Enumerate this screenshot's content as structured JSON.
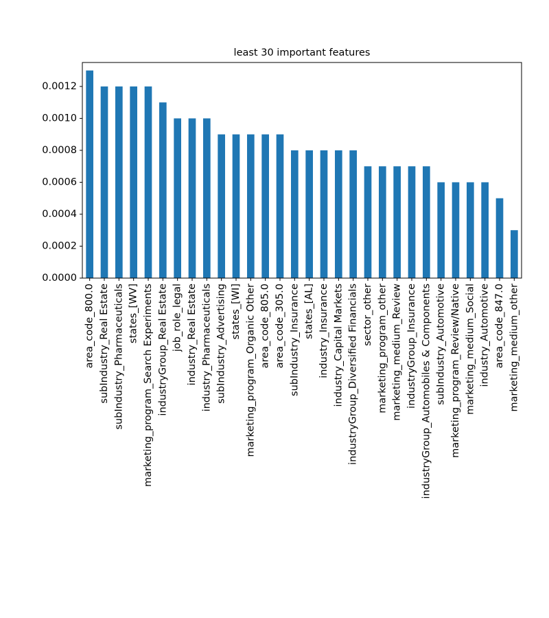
{
  "chart_data": {
    "type": "bar",
    "title": "least 30 important features",
    "xlabel": "",
    "ylabel": "",
    "ylim": [
      0,
      0.00135
    ],
    "yticks": [
      "0.0000",
      "0.0002",
      "0.0004",
      "0.0006",
      "0.0008",
      "0.0010",
      "0.0012"
    ],
    "ytick_values": [
      0,
      0.0002,
      0.0004,
      0.0006,
      0.0008,
      0.001,
      0.0012
    ],
    "grid": false,
    "bar_color": "#1f77b4",
    "categories": [
      "area_code_800.0",
      "subIndustry_Real Estate",
      "subIndustry_Pharmaceuticals",
      "states_[WV]",
      "marketing_program_Search Experiments",
      "industryGroup_Real Estate",
      "job_role_legal",
      "industry_Real Estate",
      "industry_Pharmaceuticals",
      "subIndustry_Advertising",
      "states_[WI]",
      "marketing_program_Organic Other",
      "area_code_805.0",
      "area_code_305.0",
      "subIndustry_Insurance",
      "states_[AL]",
      "industry_Insurance",
      "industry_Capital Markets",
      "industryGroup_Diversified Financials",
      "sector_other",
      "marketing_program_other",
      "marketing_medium_Review",
      "industryGroup_Insurance",
      "industryGroup_Automobiles & Components",
      "subIndustry_Automotive",
      "marketing_program_Review/Native",
      "marketing_medium_Social",
      "industry_Automotive",
      "area_code_847.0",
      "marketing_medium_other"
    ],
    "values": [
      0.0013,
      0.0012,
      0.0012,
      0.0012,
      0.0012,
      0.0011,
      0.001,
      0.001,
      0.001,
      0.0009,
      0.0009,
      0.0009,
      0.0009,
      0.0009,
      0.0008,
      0.0008,
      0.0008,
      0.0008,
      0.0008,
      0.0007,
      0.0007,
      0.0007,
      0.0007,
      0.0007,
      0.0006,
      0.0006,
      0.0006,
      0.0006,
      0.0005,
      0.0003
    ]
  }
}
